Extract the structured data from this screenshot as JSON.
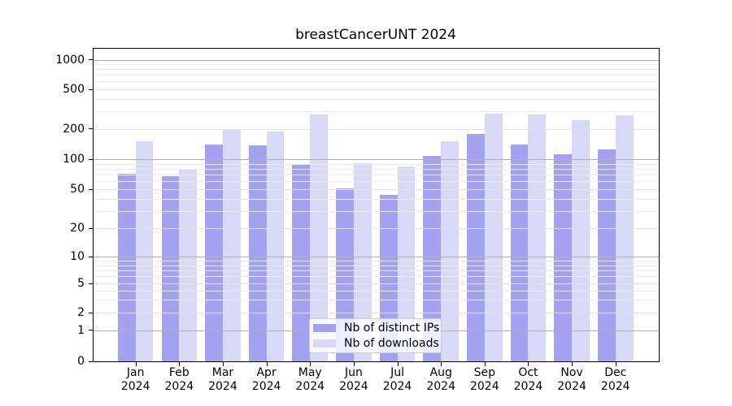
{
  "chart_data": {
    "type": "bar",
    "title": "breastCancerUNT 2024",
    "categories": [
      "Jan",
      "Feb",
      "Mar",
      "Apr",
      "May",
      "Jun",
      "Jul",
      "Aug",
      "Sep",
      "Oct",
      "Nov",
      "Dec"
    ],
    "category_year": "2024",
    "series": [
      {
        "name": "Nb of distinct IPs",
        "color": "#a2a2f0",
        "values": [
          72,
          67,
          140,
          138,
          88,
          51,
          44,
          107,
          176,
          139,
          112,
          125
        ]
      },
      {
        "name": "Nb of downloads",
        "color": "#d8d8f7",
        "values": [
          150,
          80,
          198,
          186,
          277,
          91,
          84,
          150,
          286,
          281,
          245,
          274
        ]
      }
    ],
    "yticks": [
      0,
      1,
      2,
      5,
      10,
      20,
      50,
      100,
      200,
      500,
      1000
    ],
    "yscale": "log-like with zero baseline",
    "ylim": [
      0,
      1300
    ],
    "grid": true,
    "legend_position": "lower center inside plot"
  },
  "colors": {
    "bar_distinct_ips": "#a2a2f0",
    "bar_downloads": "#d8d8f7",
    "grid_major": "#b0b0b0",
    "grid_minor": "#ececec",
    "background": "#ffffff",
    "spine": "#000000"
  }
}
